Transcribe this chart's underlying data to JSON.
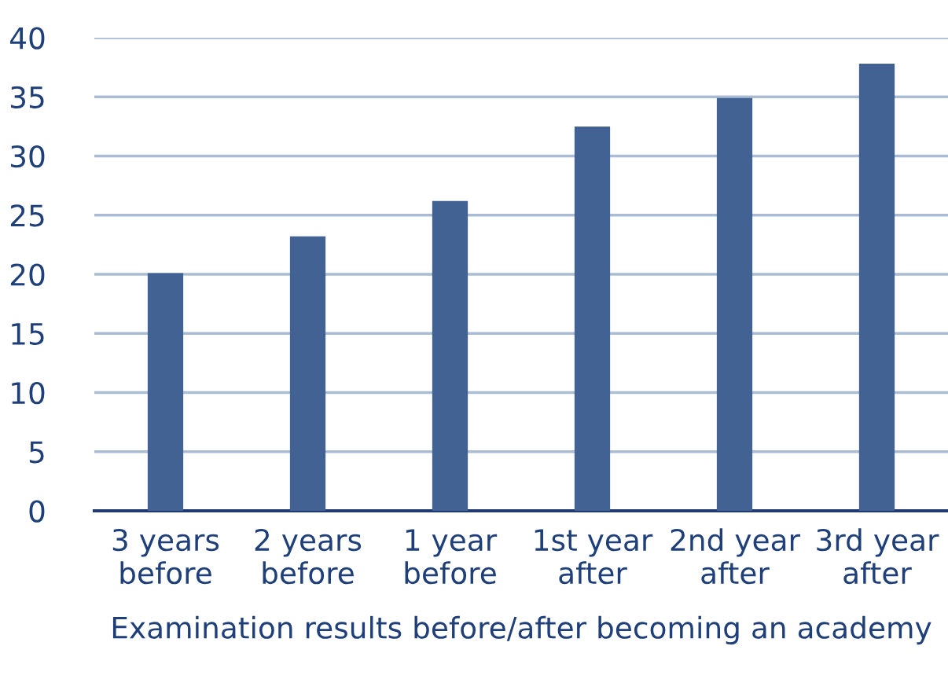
{
  "chart_data": {
    "type": "bar",
    "xlabel": "Examination results before/after becoming an academy",
    "categories": [
      "3 years\nbefore",
      "2 years\nbefore",
      "1 year\nbefore",
      "1st year\nafter",
      "2nd year\nafter",
      "3rd year\nafter"
    ],
    "values": [
      20.1,
      23.2,
      26.2,
      32.5,
      34.9,
      37.8
    ],
    "color": "#416293",
    "ylim": [
      0,
      40
    ],
    "yticks": [
      0,
      5,
      10,
      15,
      20,
      25,
      30,
      35,
      40
    ],
    "grid": "y",
    "legend": false
  }
}
